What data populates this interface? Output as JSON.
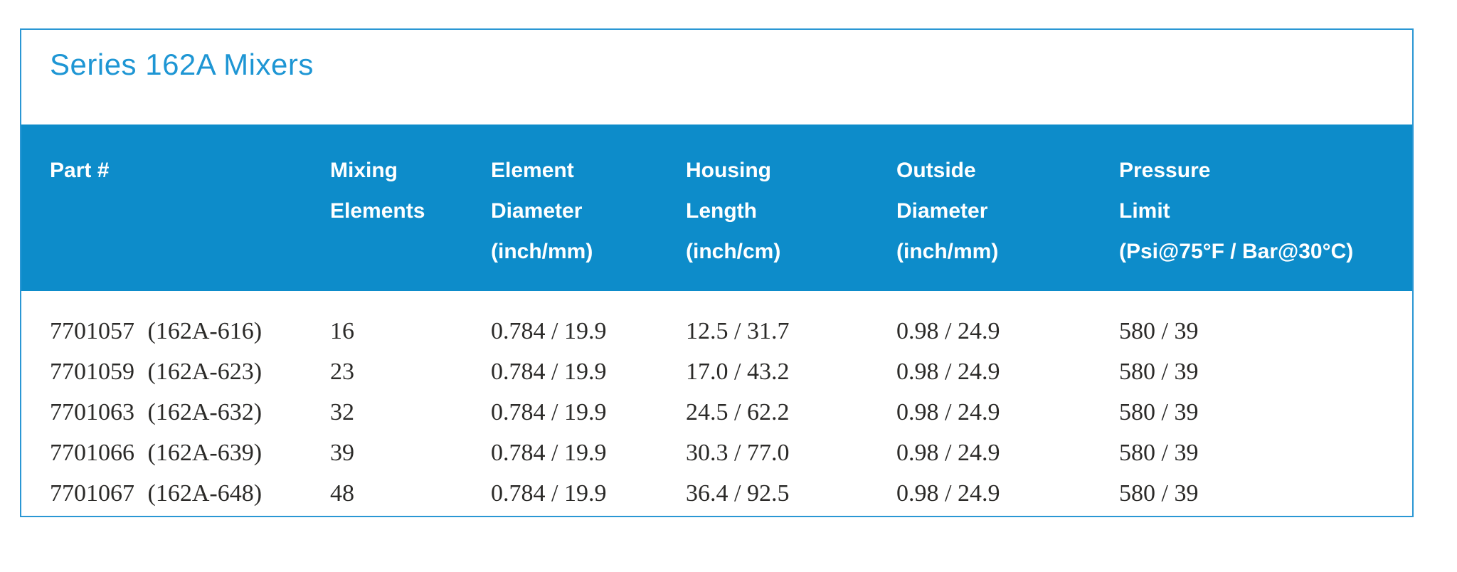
{
  "page": {
    "title": "Series 162A Mixers"
  },
  "colors": {
    "accent_blue": "#0d8cca",
    "border_blue": "#2a97d4",
    "title_blue": "#1e96d4",
    "body_text": "#2b2a28"
  },
  "table": {
    "columns": [
      {
        "lines": [
          "Part #"
        ]
      },
      {
        "lines": [
          "Mixing",
          "Elements"
        ]
      },
      {
        "lines": [
          "Element",
          "Diameter",
          "(inch/mm)"
        ]
      },
      {
        "lines": [
          "Housing",
          "Length",
          "(inch/cm)"
        ]
      },
      {
        "lines": [
          "Outside",
          "Diameter",
          "(inch/mm)"
        ]
      },
      {
        "lines": [
          "Pressure",
          "Limit",
          "(Psi@75°F / Bar@30°C)"
        ]
      }
    ],
    "rows": [
      {
        "part_no": "7701057",
        "alt_no": "(162A-616)",
        "mixing_elements": "16",
        "element_diameter": "0.784 / 19.9",
        "housing_length": "12.5 / 31.7",
        "outside_diameter": "0.98 / 24.9",
        "pressure_limit": "580 / 39"
      },
      {
        "part_no": "7701059",
        "alt_no": "(162A-623)",
        "mixing_elements": "23",
        "element_diameter": "0.784 / 19.9",
        "housing_length": "17.0 / 43.2",
        "outside_diameter": "0.98 / 24.9",
        "pressure_limit": "580 / 39"
      },
      {
        "part_no": "7701063",
        "alt_no": "(162A-632)",
        "mixing_elements": "32",
        "element_diameter": "0.784 / 19.9",
        "housing_length": "24.5 / 62.2",
        "outside_diameter": "0.98 / 24.9",
        "pressure_limit": "580 / 39"
      },
      {
        "part_no": "7701066",
        "alt_no": "(162A-639)",
        "mixing_elements": "39",
        "element_diameter": "0.784 / 19.9",
        "housing_length": "30.3 / 77.0",
        "outside_diameter": "0.98 / 24.9",
        "pressure_limit": "580 / 39"
      },
      {
        "part_no": "7701067",
        "alt_no": "(162A-648)",
        "mixing_elements": "48",
        "element_diameter": "0.784 / 19.9",
        "housing_length": "36.4 / 92.5",
        "outside_diameter": "0.98 / 24.9",
        "pressure_limit": "580 / 39"
      }
    ]
  }
}
